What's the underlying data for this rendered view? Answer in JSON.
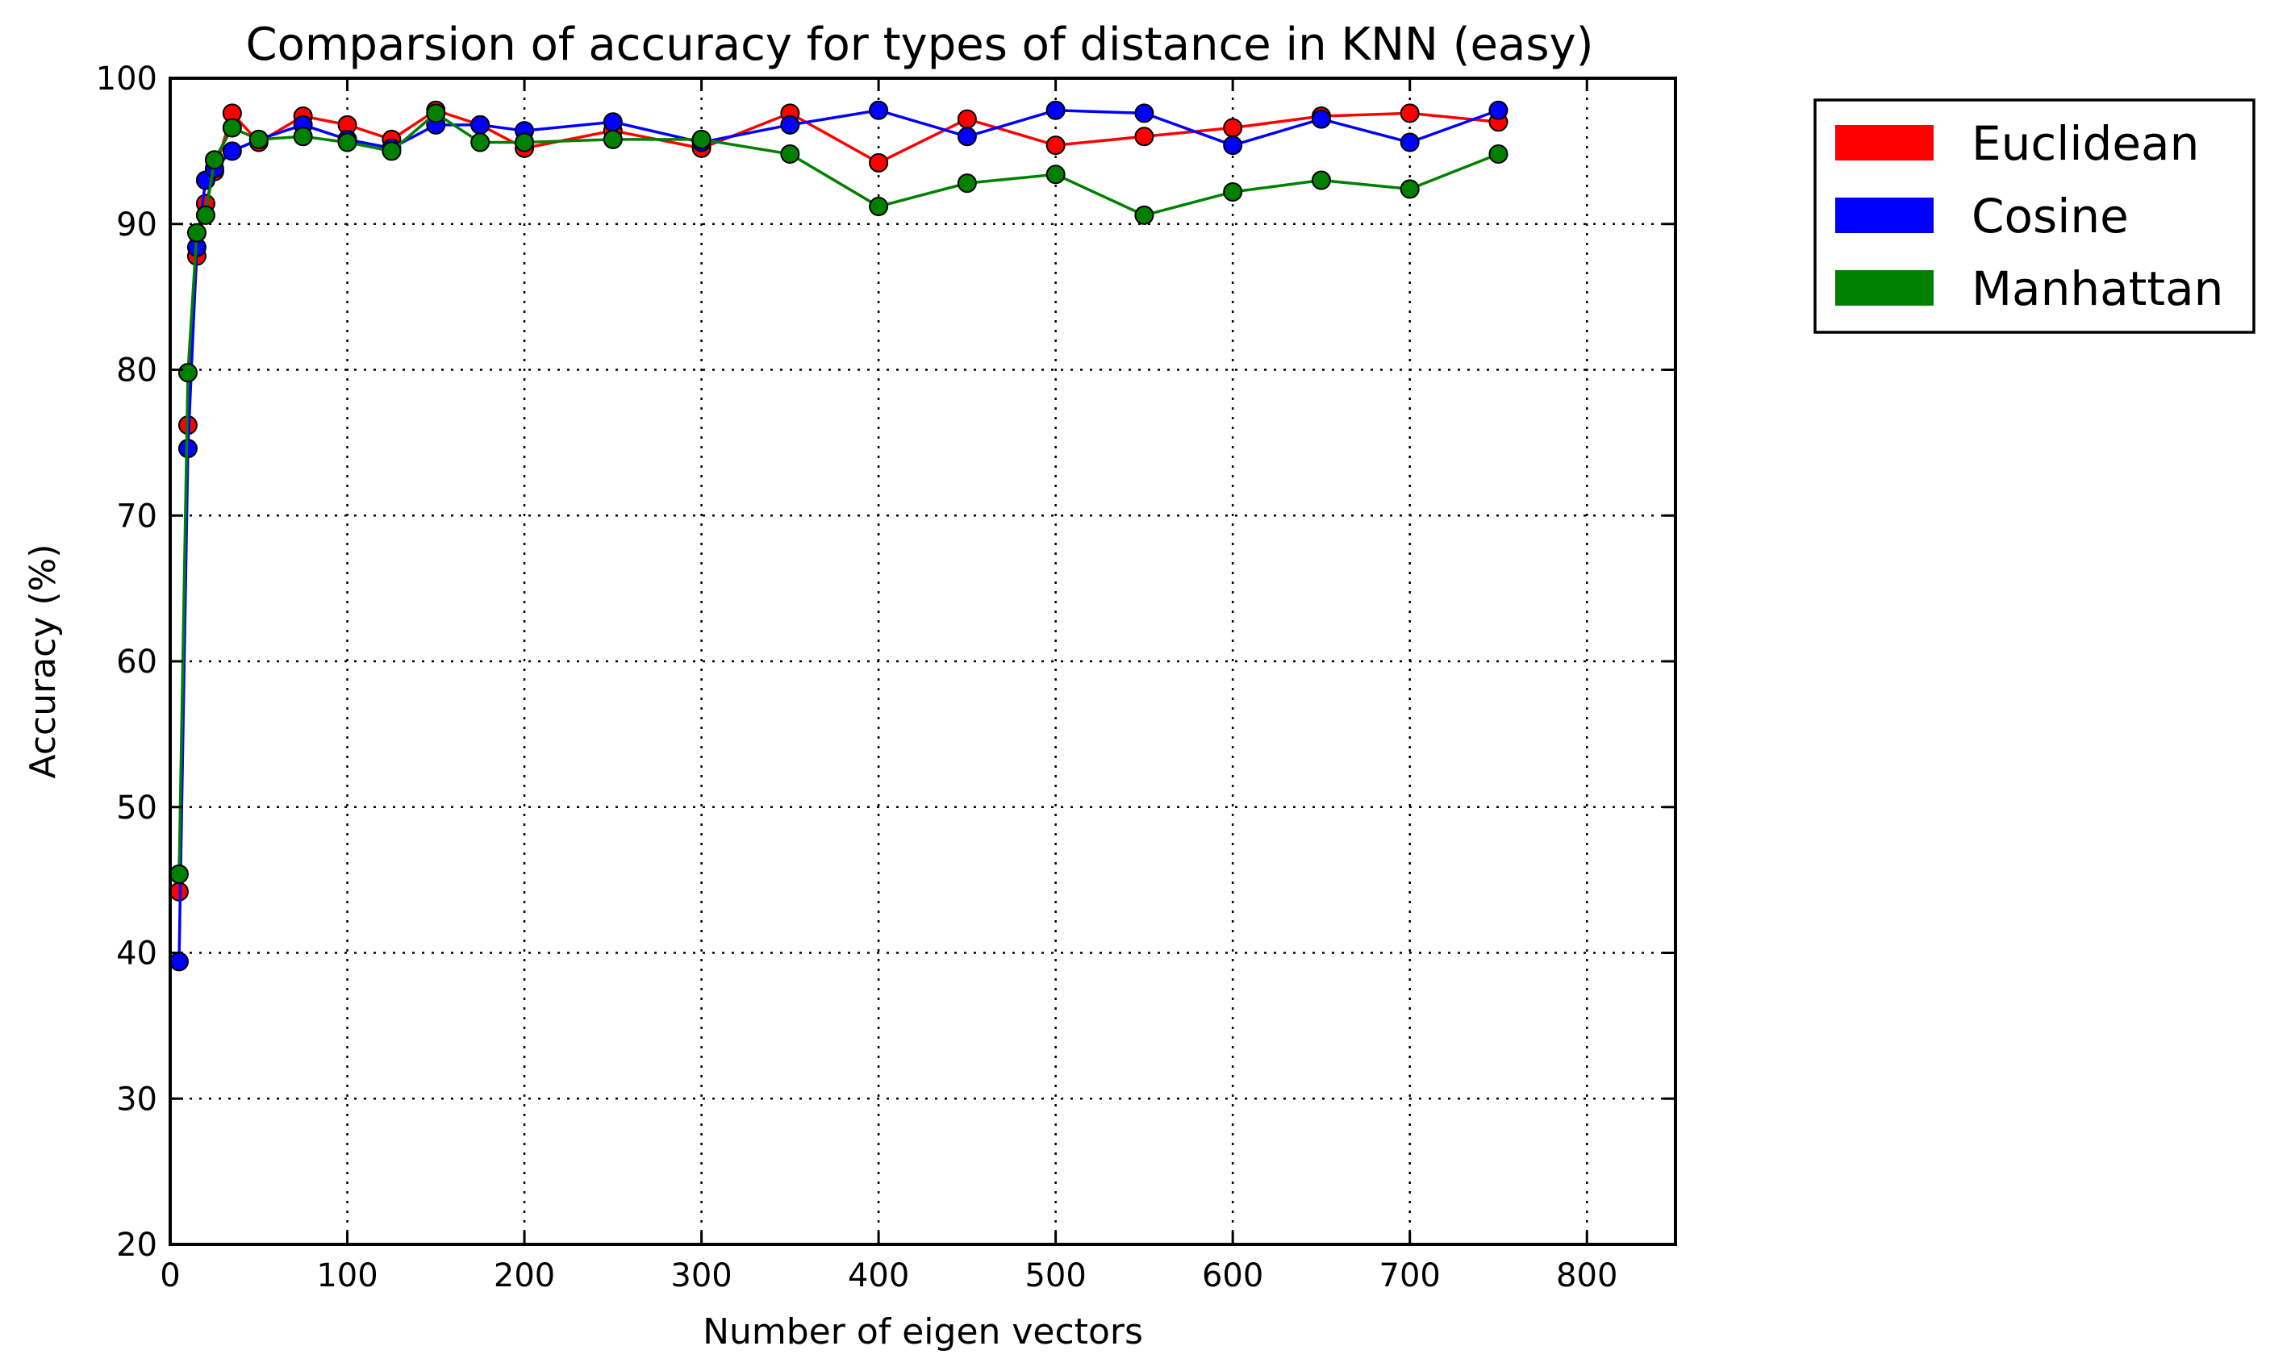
{
  "chart_data": {
    "type": "line",
    "title": "Comparsion of accuracy for types of distance in KNN (easy)",
    "xlabel": "Number of eigen vectors",
    "ylabel": "Accuracy (%)",
    "xlim": [
      0,
      850
    ],
    "ylim": [
      20,
      100
    ],
    "xticks": [
      "0",
      "100",
      "200",
      "300",
      "400",
      "500",
      "600",
      "700",
      "800"
    ],
    "yticks": [
      "20",
      "30",
      "40",
      "50",
      "60",
      "70",
      "80",
      "90",
      "100"
    ],
    "grid": true,
    "legend_position": "outside-right",
    "x": [
      5,
      10,
      15,
      20,
      25,
      35,
      50,
      75,
      100,
      125,
      150,
      175,
      200,
      250,
      300,
      350,
      400,
      450,
      500,
      550,
      600,
      650,
      700,
      750
    ],
    "series": [
      {
        "name": "Euclidean",
        "color": "#ff0000",
        "values": [
          44.2,
          76.2,
          87.8,
          91.4,
          93.6,
          97.6,
          95.6,
          97.4,
          96.8,
          95.8,
          97.8,
          96.8,
          95.2,
          96.4,
          95.2,
          97.6,
          94.2,
          97.2,
          95.4,
          96.0,
          96.6,
          97.4,
          97.6,
          97.0
        ]
      },
      {
        "name": "Cosine",
        "color": "#0000ff",
        "values": [
          39.4,
          74.6,
          88.4,
          93.0,
          93.8,
          95.0,
          95.8,
          96.8,
          95.8,
          95.2,
          96.8,
          96.8,
          96.4,
          97.0,
          95.6,
          96.8,
          97.8,
          96.0,
          97.8,
          97.6,
          95.4,
          97.2,
          95.6,
          97.8
        ]
      },
      {
        "name": "Manhattan",
        "color": "#008000",
        "values": [
          45.4,
          79.8,
          89.4,
          90.6,
          94.4,
          96.6,
          95.8,
          96.0,
          95.6,
          95.0,
          97.6,
          95.6,
          95.6,
          95.8,
          95.8,
          94.8,
          91.2,
          92.8,
          93.4,
          90.6,
          92.2,
          93.0,
          92.4,
          94.8
        ]
      }
    ]
  }
}
